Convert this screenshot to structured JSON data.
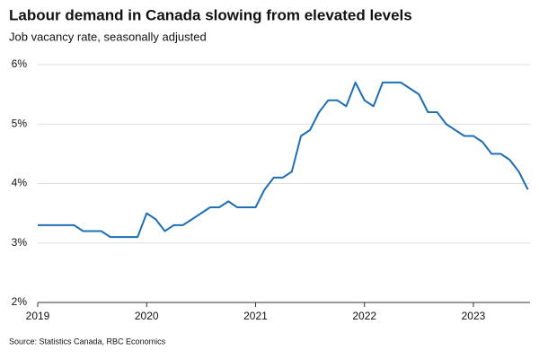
{
  "chart_data": {
    "type": "line",
    "title": "Labour demand in Canada slowing from elevated levels",
    "subtitle": "Job vacancy rate, seasonally adjusted",
    "source": "Source: Statistics Canada, RBC Economics",
    "x": [
      2019,
      2019.083,
      2019.167,
      2019.25,
      2019.333,
      2019.417,
      2019.5,
      2019.583,
      2019.667,
      2019.75,
      2019.833,
      2019.917,
      2020,
      2020.083,
      2020.167,
      2020.25,
      2020.333,
      2020.417,
      2020.5,
      2020.583,
      2020.667,
      2020.75,
      2020.833,
      2020.917,
      2021,
      2021.083,
      2021.167,
      2021.25,
      2021.333,
      2021.417,
      2021.5,
      2021.583,
      2021.667,
      2021.75,
      2021.833,
      2021.917,
      2022,
      2022.083,
      2022.167,
      2022.25,
      2022.333,
      2022.417,
      2022.5,
      2022.583,
      2022.667,
      2022.75,
      2022.833,
      2022.917,
      2023,
      2023.083,
      2023.167,
      2023.25,
      2023.333,
      2023.417,
      2023.5
    ],
    "series": [
      {
        "color": "#1f6fb5",
        "values": [
          3.3,
          3.3,
          3.3,
          3.3,
          3.3,
          3.2,
          3.2,
          3.2,
          3.1,
          3.1,
          3.1,
          3.1,
          3.5,
          3.4,
          3.2,
          3.3,
          3.3,
          3.4,
          3.5,
          3.6,
          3.6,
          3.7,
          3.6,
          3.6,
          3.6,
          3.9,
          4.1,
          4.1,
          4.2,
          4.8,
          4.9,
          5.2,
          5.4,
          5.4,
          5.3,
          5.7,
          5.4,
          5.3,
          5.7,
          5.7,
          5.7,
          5.6,
          5.5,
          5.2,
          5.2,
          5.0,
          4.9,
          4.8,
          4.8,
          4.7,
          4.5,
          4.5,
          4.4,
          4.2,
          3.9
        ]
      }
    ],
    "xlim": [
      2019,
      2023.52
    ],
    "xticks": [
      2019,
      2020,
      2021,
      2022,
      2023
    ],
    "ylim": [
      2,
      6
    ],
    "yticks": [
      {
        "value": 2,
        "label": "2%"
      },
      {
        "value": 3,
        "label": "3%"
      },
      {
        "value": 4,
        "label": "4%"
      },
      {
        "value": 5,
        "label": "5%"
      },
      {
        "value": 6,
        "label": "6%"
      }
    ],
    "grid": true
  }
}
